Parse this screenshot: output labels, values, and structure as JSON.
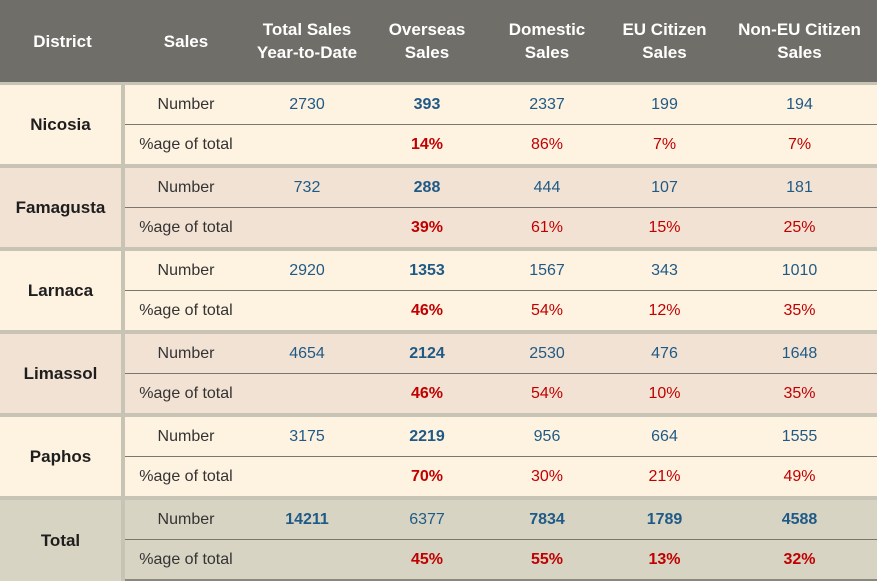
{
  "headers": {
    "district": "District",
    "sales": "Sales",
    "total_ytd_1": "Total Sales",
    "total_ytd_2": "Year-to-Date",
    "overseas_1": "Overseas",
    "overseas_2": "Sales",
    "domestic_1": "Domestic",
    "domestic_2": "Sales",
    "eu_1": "EU Citizen",
    "eu_2": "Sales",
    "noneu_1": "Non-EU Citizen",
    "noneu_2": "Sales"
  },
  "row_labels": {
    "number": "Number",
    "percent": "%age of total",
    "sales": "Sales"
  },
  "districts": [
    {
      "name": "Nicosia",
      "number": {
        "total": "2730",
        "overseas": "393",
        "domestic": "2337",
        "eu": "199",
        "noneu": "194"
      },
      "percent": {
        "overseas": "14%",
        "domestic": "86%",
        "eu": "7%",
        "noneu": "7%"
      }
    },
    {
      "name": "Famagusta",
      "number": {
        "total": "732",
        "overseas": "288",
        "domestic": "444",
        "eu": "107",
        "noneu": "181"
      },
      "percent": {
        "overseas": "39%",
        "domestic": "61%",
        "eu": "15%",
        "noneu": "25%"
      }
    },
    {
      "name": "Larnaca",
      "number": {
        "total": "2920",
        "overseas": "1353",
        "domestic": "1567",
        "eu": "343",
        "noneu": "1010"
      },
      "percent": {
        "overseas": "46%",
        "domestic": "54%",
        "eu": "12%",
        "noneu": "35%"
      }
    },
    {
      "name": "Limassol",
      "number": {
        "total": "4654",
        "overseas": "2124",
        "domestic": "2530",
        "eu": "476",
        "noneu": "1648"
      },
      "percent": {
        "overseas": "46%",
        "domestic": "54%",
        "eu": "10%",
        "noneu": "35%"
      }
    },
    {
      "name": "Paphos",
      "number": {
        "total": "3175",
        "overseas": "2219",
        "domestic": "956",
        "eu": "664",
        "noneu": "1555"
      },
      "percent": {
        "overseas": "70%",
        "domestic": "30%",
        "eu": "21%",
        "noneu": "49%"
      }
    }
  ],
  "total": {
    "name": "Total",
    "number": {
      "total": "14211",
      "overseas": "6377",
      "domestic": "7834",
      "eu": "1789",
      "noneu": "4588"
    },
    "percent": {
      "overseas": "45%",
      "domestic": "55%",
      "eu": "13%",
      "noneu": "32%"
    }
  },
  "colors": {
    "header_bg": "#6f6e68",
    "row_odd": "#fef2e1",
    "row_even": "#f2e2d3",
    "row_total": "#d8d4c3",
    "number_blue": "#1f5a86",
    "percent_red": "#c00000"
  }
}
